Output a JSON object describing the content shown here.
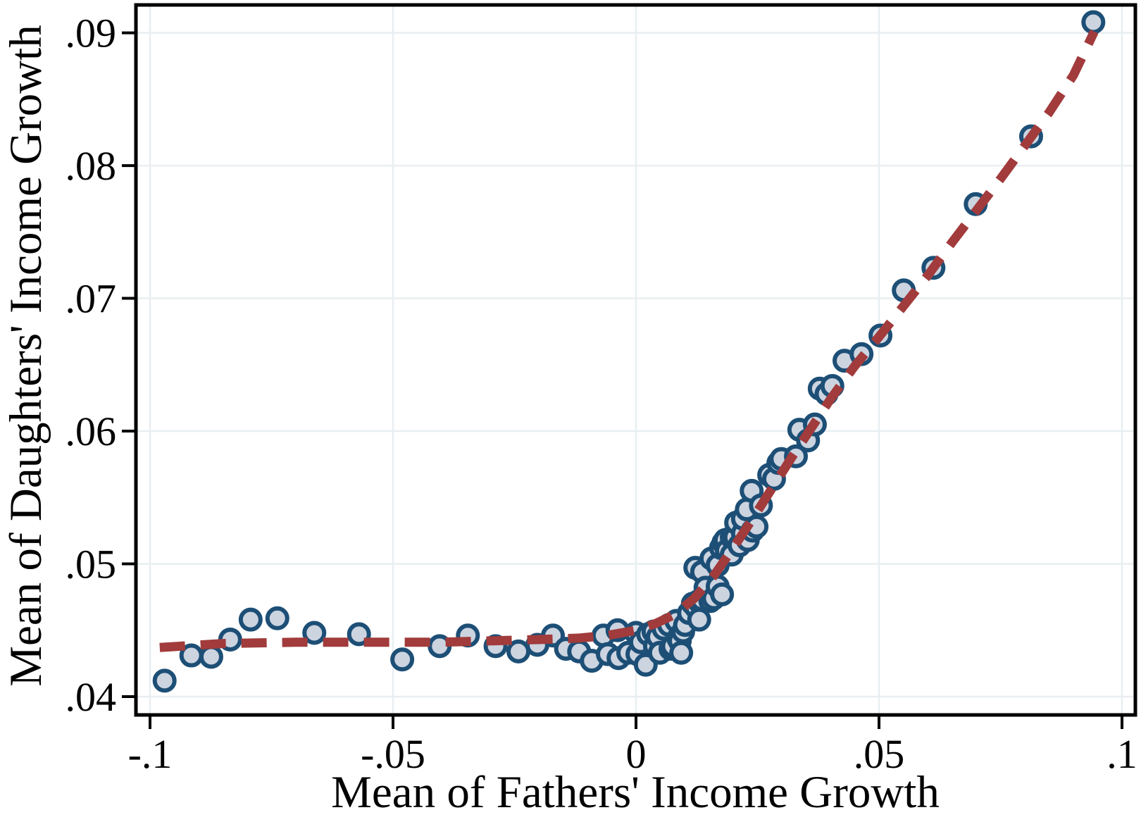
{
  "figure": {
    "background": "#ffffff",
    "axis_color": "#000000",
    "grid_color": "#e8eef1",
    "x_axis": {
      "title": "Mean of Fathers' Income Growth",
      "tick_labels": [
        "-.1",
        "-.05",
        "0",
        ".05",
        ".1"
      ]
    },
    "y_axis": {
      "title": "Mean of Daughters' Income Growth",
      "tick_labels": [
        ".04",
        ".05",
        ".06",
        ".07",
        ".08",
        ".09"
      ]
    }
  },
  "chart_data": {
    "type": "scatter",
    "title": "",
    "xlabel": "Mean of Fathers' Income Growth",
    "ylabel": "Mean of Daughters' Income Growth",
    "xlim": [
      -0.1029,
      0.10275
    ],
    "ylim": [
      0.03862,
      0.0921
    ],
    "x_ticks": [
      -0.1,
      -0.05,
      0,
      0.05,
      0.1
    ],
    "x_tick_labels": [
      "-.1",
      "-.05",
      "0",
      ".05",
      ".1"
    ],
    "y_ticks": [
      0.04,
      0.05,
      0.06,
      0.07,
      0.08,
      0.09
    ],
    "y_tick_labels": [
      ".04",
      ".05",
      ".06",
      ".07",
      ".08",
      ".09"
    ],
    "grid": true,
    "legend": "none",
    "series": [
      {
        "name": "binned-scatter-points",
        "type": "scatter",
        "marker": {
          "fill": "#ccd4e0",
          "stroke": "#1d4f76",
          "radius": 14,
          "stroke_width": 6
        },
        "points": [
          [
            -0.097,
            0.0412
          ],
          [
            -0.0915,
            0.0431
          ],
          [
            -0.0874,
            0.043
          ],
          [
            -0.0835,
            0.0443
          ],
          [
            -0.0793,
            0.0458
          ],
          [
            -0.0738,
            0.0459
          ],
          [
            -0.0662,
            0.0448
          ],
          [
            -0.057,
            0.0447
          ],
          [
            -0.0481,
            0.0428
          ],
          [
            -0.0404,
            0.0438
          ],
          [
            -0.0346,
            0.0446
          ],
          [
            -0.0289,
            0.0438
          ],
          [
            -0.0242,
            0.0434
          ],
          [
            -0.0203,
            0.0439
          ],
          [
            -0.0171,
            0.0446
          ],
          [
            -0.0144,
            0.0436
          ],
          [
            -0.0117,
            0.0434
          ],
          [
            -0.0091,
            0.0427
          ],
          [
            -0.0067,
            0.0446
          ],
          [
            -0.0058,
            0.0432
          ],
          [
            -0.0038,
            0.045
          ],
          [
            -0.0036,
            0.0429
          ],
          [
            -0.0016,
            0.0433
          ],
          [
            0.0,
            0.0448
          ],
          [
            0.0003,
            0.0432
          ],
          [
            0.001,
            0.0441
          ],
          [
            0.002,
            0.0424
          ],
          [
            0.0025,
            0.0447
          ],
          [
            0.0036,
            0.0449
          ],
          [
            0.0039,
            0.0438
          ],
          [
            0.0045,
            0.0445
          ],
          [
            0.0049,
            0.0433
          ],
          [
            0.0057,
            0.0451
          ],
          [
            0.0068,
            0.0454
          ],
          [
            0.0071,
            0.0436
          ],
          [
            0.0076,
            0.0438
          ],
          [
            0.0083,
            0.0457
          ],
          [
            0.0087,
            0.0444
          ],
          [
            0.009,
            0.0442
          ],
          [
            0.0093,
            0.0433
          ],
          [
            0.0097,
            0.0449
          ],
          [
            0.0101,
            0.0454
          ],
          [
            0.0109,
            0.0463
          ],
          [
            0.0117,
            0.047
          ],
          [
            0.0122,
            0.0497
          ],
          [
            0.0124,
            0.0467
          ],
          [
            0.0129,
            0.0472
          ],
          [
            0.013,
            0.0458
          ],
          [
            0.0136,
            0.0473
          ],
          [
            0.0136,
            0.0494
          ],
          [
            0.0143,
            0.0482
          ],
          [
            0.0153,
            0.0472
          ],
          [
            0.0155,
            0.0504
          ],
          [
            0.016,
            0.0474
          ],
          [
            0.0168,
            0.0483
          ],
          [
            0.0168,
            0.0499
          ],
          [
            0.0175,
            0.0512
          ],
          [
            0.0177,
            0.0477
          ],
          [
            0.018,
            0.0516
          ],
          [
            0.0184,
            0.0518
          ],
          [
            0.0187,
            0.051
          ],
          [
            0.0197,
            0.0507
          ],
          [
            0.0197,
            0.052
          ],
          [
            0.0204,
            0.052
          ],
          [
            0.0206,
            0.0531
          ],
          [
            0.0213,
            0.0514
          ],
          [
            0.022,
            0.0523
          ],
          [
            0.022,
            0.0534
          ],
          [
            0.0228,
            0.0541
          ],
          [
            0.023,
            0.0518
          ],
          [
            0.0238,
            0.0555
          ],
          [
            0.024,
            0.0525
          ],
          [
            0.0248,
            0.0528
          ],
          [
            0.0257,
            0.0544
          ],
          [
            0.0274,
            0.0567
          ],
          [
            0.0284,
            0.0564
          ],
          [
            0.0293,
            0.0576
          ],
          [
            0.0299,
            0.0579
          ],
          [
            0.0329,
            0.0581
          ],
          [
            0.0336,
            0.0601
          ],
          [
            0.0354,
            0.0593
          ],
          [
            0.0368,
            0.0605
          ],
          [
            0.0378,
            0.0632
          ],
          [
            0.0392,
            0.0628
          ],
          [
            0.0404,
            0.0634
          ],
          [
            0.0429,
            0.0653
          ],
          [
            0.0464,
            0.0658
          ],
          [
            0.0503,
            0.0672
          ],
          [
            0.0551,
            0.0706
          ],
          [
            0.0612,
            0.0723
          ],
          [
            0.0699,
            0.0771
          ],
          [
            0.0813,
            0.0822
          ],
          [
            0.0941,
            0.0908
          ]
        ]
      },
      {
        "name": "fitted-dashed-line",
        "type": "line",
        "style": {
          "color": "#a13b3c",
          "width": 13,
          "dash": [
            36,
            22
          ]
        },
        "points": [
          [
            -0.098,
            0.0437
          ],
          [
            -0.085,
            0.044
          ],
          [
            -0.07,
            0.0441
          ],
          [
            -0.055,
            0.0441
          ],
          [
            -0.04,
            0.0441
          ],
          [
            -0.03,
            0.0442
          ],
          [
            -0.02,
            0.0443
          ],
          [
            -0.012,
            0.0444
          ],
          [
            -0.006,
            0.0446
          ],
          [
            0.0,
            0.045
          ],
          [
            0.004,
            0.0455
          ],
          [
            0.008,
            0.0462
          ],
          [
            0.012,
            0.0474
          ],
          [
            0.016,
            0.0491
          ],
          [
            0.02,
            0.0512
          ],
          [
            0.024,
            0.0534
          ],
          [
            0.028,
            0.0557
          ],
          [
            0.032,
            0.058
          ],
          [
            0.036,
            0.0602
          ],
          [
            0.04,
            0.0624
          ],
          [
            0.045,
            0.0649
          ],
          [
            0.05,
            0.0671
          ],
          [
            0.055,
            0.0694
          ],
          [
            0.06,
            0.0717
          ],
          [
            0.065,
            0.0742
          ],
          [
            0.07,
            0.0766
          ],
          [
            0.075,
            0.079
          ],
          [
            0.08,
            0.0815
          ],
          [
            0.085,
            0.084
          ],
          [
            0.09,
            0.0868
          ],
          [
            0.0943,
            0.0901
          ]
        ]
      }
    ]
  }
}
